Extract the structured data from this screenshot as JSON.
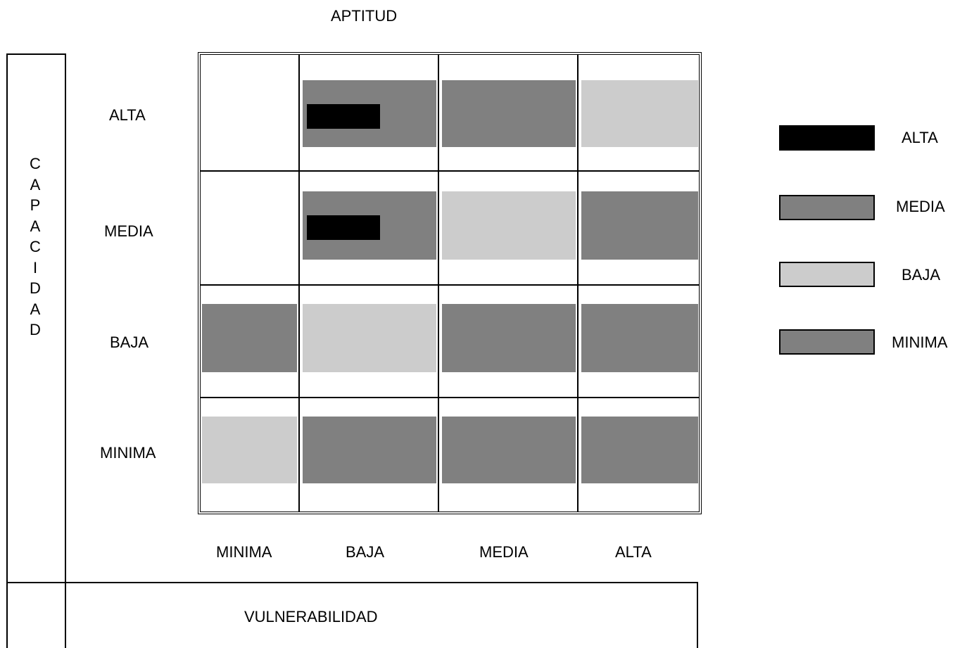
{
  "title": "APTITUD",
  "y_axis": {
    "title_letters": [
      "C",
      "A",
      "P",
      "A",
      "C",
      "I",
      "D",
      "A",
      "D"
    ],
    "levels": [
      "ALTA",
      "MEDIA",
      "BAJA",
      "MINIMA"
    ]
  },
  "x_axis": {
    "title": "VULNERABILIDAD",
    "levels": [
      "MINIMA",
      "BAJA",
      "MEDIA",
      "ALTA"
    ]
  },
  "colors": {
    "ALTA": "#000000",
    "MEDIA": "#808080",
    "BAJA": "#cccccc",
    "MINIMA": "#808080",
    "empty": "#ffffff"
  },
  "matrix": [
    [
      "",
      "MEDIA",
      "MEDIA",
      "BAJA"
    ],
    [
      "",
      "MEDIA",
      "BAJA",
      "MEDIA"
    ],
    [
      "MEDIA",
      "BAJA",
      "MEDIA",
      "MEDIA"
    ],
    [
      "BAJA",
      "MEDIA",
      "MEDIA",
      "MEDIA"
    ]
  ],
  "alta_marks": [
    [
      0,
      1
    ],
    [
      1,
      1
    ]
  ],
  "legend": [
    {
      "label": "ALTA",
      "color": "#000000"
    },
    {
      "label": "MEDIA",
      "color": "#808080"
    },
    {
      "label": "BAJA",
      "color": "#cccccc"
    },
    {
      "label": "MINIMA",
      "color": "#808080"
    }
  ]
}
